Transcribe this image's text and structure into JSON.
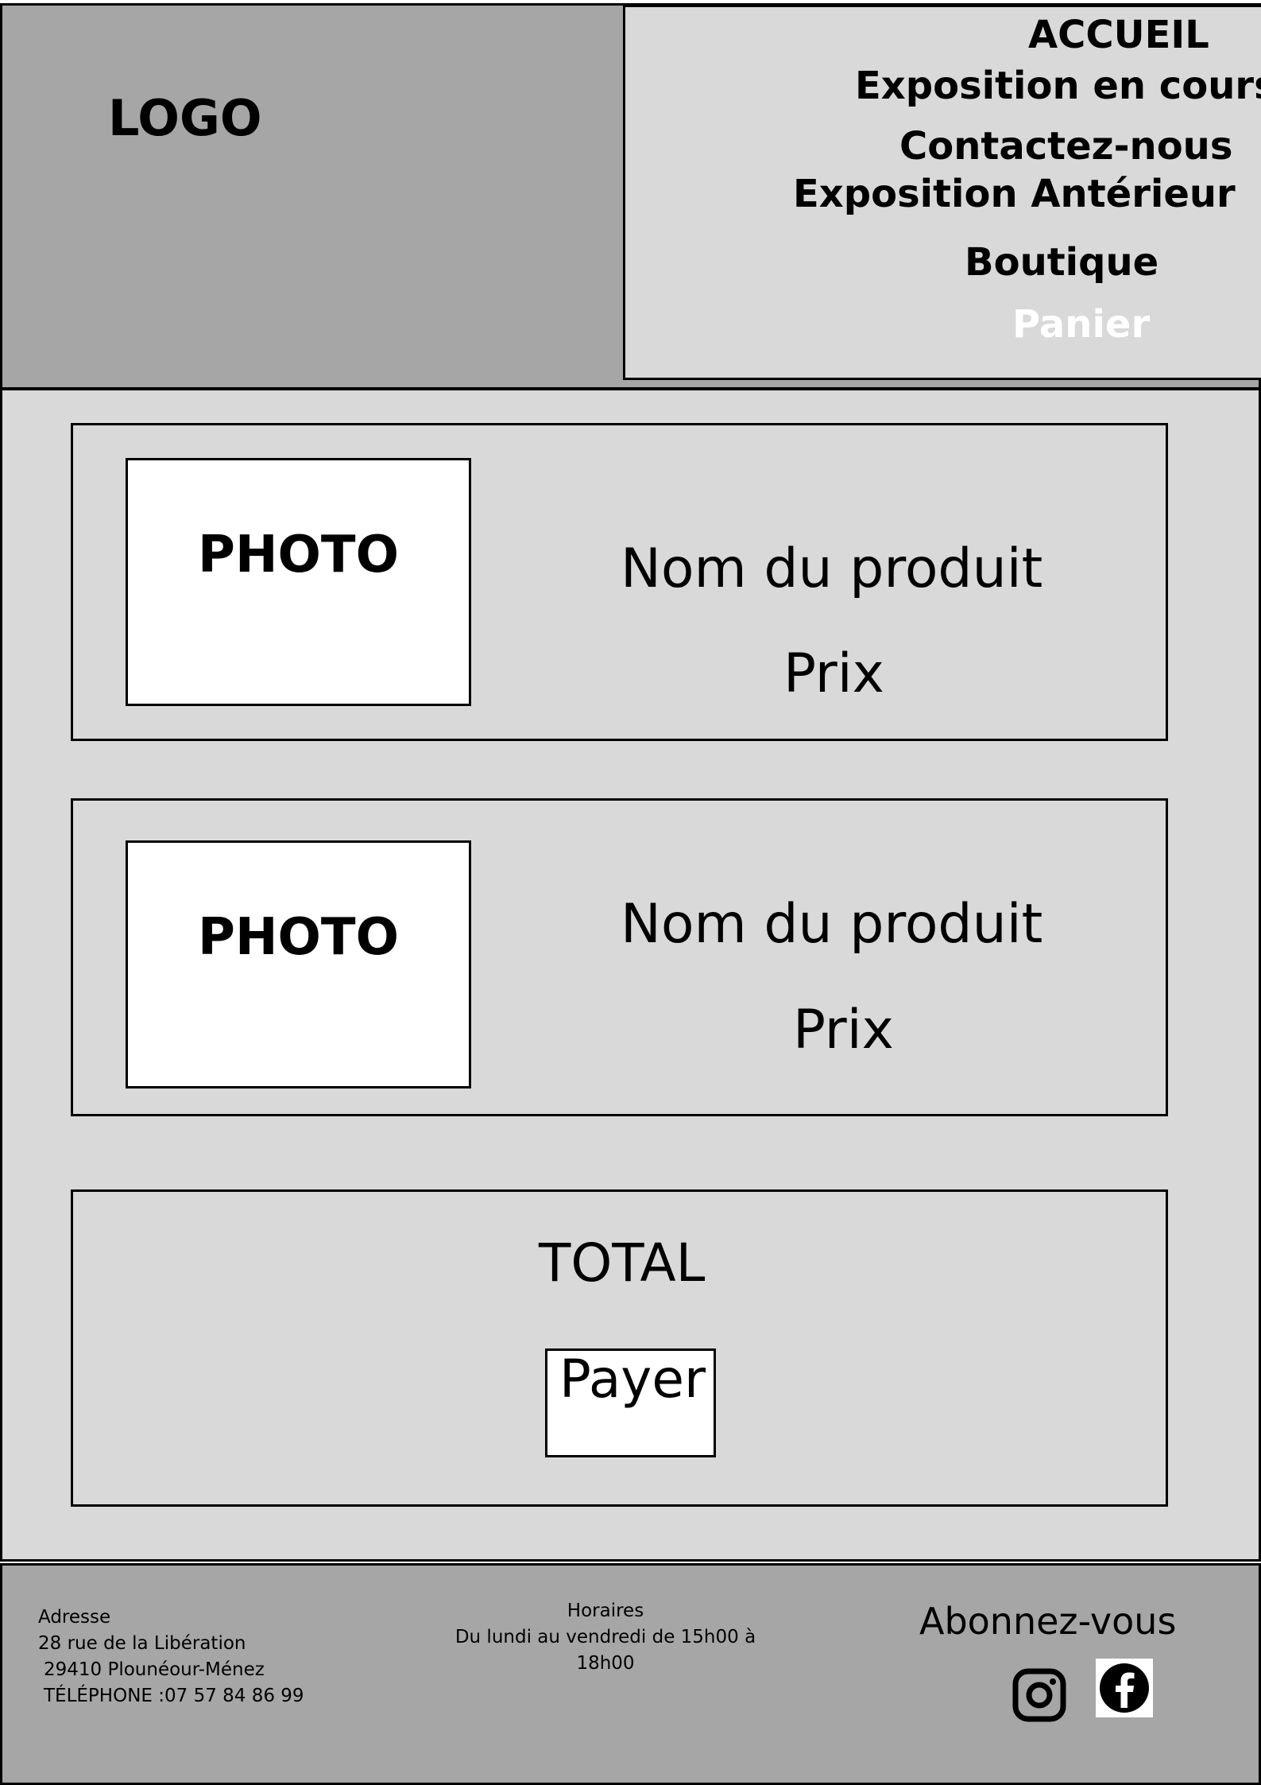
{
  "header": {
    "logo": "LOGO",
    "nav": {
      "home": "ACCUEIL",
      "current_exhibition": "Exposition en cours",
      "contact": "Contactez-nous",
      "past_exhibition": "Exposition Antérieur",
      "shop": "Boutique",
      "cart": "Panier"
    }
  },
  "cart": {
    "items": [
      {
        "photo": "PHOTO",
        "name": "Nom du produit",
        "price": "Prix"
      },
      {
        "photo": "PHOTO",
        "name": "Nom du produit",
        "price": "Prix"
      }
    ],
    "total_label": "TOTAL",
    "pay_label": "Payer"
  },
  "footer": {
    "address": {
      "label": "Adresse",
      "street": "28 rue de la Libération",
      "city": "29410 Plounéour-Ménez",
      "phone": "TÉLÉPHONE :07 57 84 86 99"
    },
    "hours": {
      "label": "Horaires",
      "line1": "Du lundi au vendredi de 15h00 à",
      "line2": "18h00"
    },
    "subscribe_label": "Abonnez-vous",
    "social_icons": [
      "instagram-icon",
      "facebook-icon"
    ]
  },
  "colors": {
    "header_bg": "#a6a6a6",
    "panel_bg": "#d9d9d9",
    "box_bg": "#ffffff",
    "active_nav": "#ffffff",
    "text": "#000000"
  }
}
